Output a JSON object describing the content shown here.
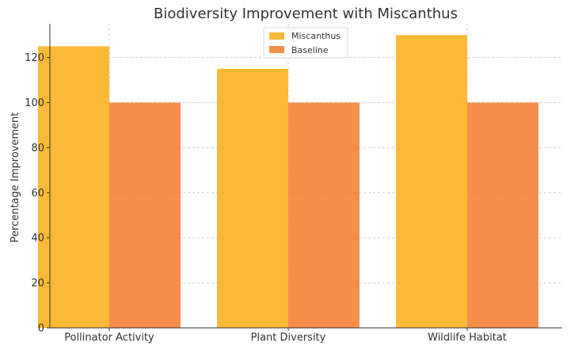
{
  "chart_data": {
    "type": "bar",
    "title": "Biodiversity Improvement with Miscanthus",
    "xlabel": "",
    "ylabel": "Percentage Improvement",
    "categories": [
      "Pollinator Activity",
      "Plant Diversity",
      "Wildlife Habitat"
    ],
    "series": [
      {
        "name": "Miscanthus",
        "values": [
          125,
          115,
          130
        ],
        "color": "#fbb52b",
        "opacity": 0.95
      },
      {
        "name": "Baseline",
        "values": [
          100,
          100,
          100
        ],
        "color": "#f47a2c",
        "opacity": 0.85
      }
    ],
    "ylim": [
      0,
      135
    ],
    "yticks": [
      0,
      20,
      40,
      60,
      80,
      100,
      120
    ],
    "grid": true,
    "legend_position": "top-center"
  }
}
